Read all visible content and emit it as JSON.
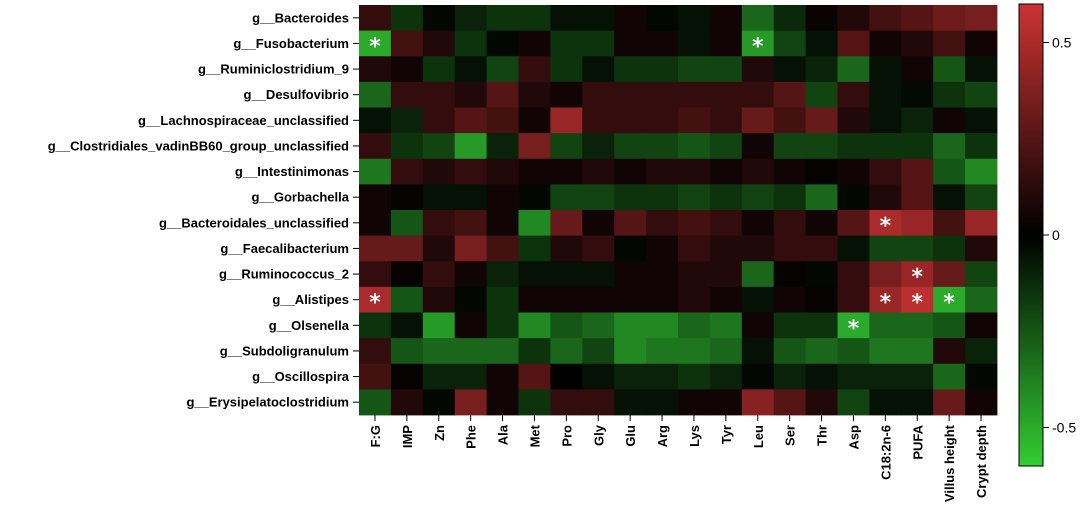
{
  "chart_data": {
    "type": "heatmap",
    "title": "",
    "rows": [
      "g__Bacteroides",
      "g__Fusobacterium",
      "g__Ruminiclostridium_9",
      "g__Desulfovibrio",
      "g__Lachnospiraceae_unclassified",
      "g__Clostridiales_vadinBB60_group_unclassified",
      "g__Intestinimonas",
      "g__Gorbachella",
      "g__Bacteroidales_unclassified",
      "g__Faecalibacterium",
      "g__Ruminococcus_2",
      "g__Alistipes",
      "g__Olsenella",
      "g__Subdoligranulum",
      "g__Oscillospira",
      "g__Erysipelatoclostridium"
    ],
    "columns": [
      "F:G",
      "IMP",
      "Zn",
      "Phe",
      "Ala",
      "Met",
      "Pro",
      "Gly",
      "Glu",
      "Arg",
      "Lys",
      "Tyr",
      "Leu",
      "Ser",
      "Thr",
      "Asp",
      "C18:2n-6",
      "PUFA",
      "Villus height",
      "Crypt depth"
    ],
    "values": [
      [
        0.15,
        -0.15,
        -0.02,
        -0.1,
        -0.15,
        -0.15,
        -0.05,
        -0.05,
        0.05,
        -0.02,
        -0.05,
        0.05,
        -0.3,
        -0.12,
        0.03,
        0.1,
        0.2,
        0.25,
        0.32,
        0.35
      ],
      [
        -0.5,
        0.2,
        0.1,
        -0.15,
        -0.02,
        0.05,
        -0.15,
        -0.15,
        0.05,
        0.05,
        -0.05,
        0.05,
        -0.45,
        -0.2,
        -0.05,
        0.25,
        0.05,
        0.1,
        0.2,
        0.05
      ],
      [
        0.1,
        0.05,
        -0.15,
        -0.05,
        -0.2,
        0.15,
        -0.15,
        -0.05,
        -0.15,
        -0.15,
        -0.2,
        -0.2,
        0.1,
        -0.05,
        -0.1,
        -0.3,
        -0.05,
        0.05,
        -0.25,
        -0.05
      ],
      [
        -0.3,
        0.15,
        0.15,
        0.1,
        0.25,
        0.1,
        0.05,
        0.15,
        0.15,
        0.15,
        0.15,
        0.15,
        0.15,
        0.25,
        -0.2,
        0.15,
        -0.05,
        -0.03,
        -0.15,
        -0.2
      ],
      [
        -0.05,
        -0.1,
        0.15,
        0.25,
        0.2,
        0.05,
        0.45,
        0.15,
        0.15,
        0.15,
        0.2,
        0.15,
        0.3,
        0.2,
        0.3,
        0.1,
        -0.05,
        -0.1,
        0.05,
        -0.05
      ],
      [
        0.15,
        -0.15,
        -0.2,
        -0.45,
        -0.1,
        0.35,
        -0.2,
        -0.1,
        -0.2,
        -0.2,
        -0.25,
        -0.2,
        0.05,
        -0.2,
        -0.2,
        -0.15,
        -0.15,
        -0.15,
        -0.3,
        -0.15
      ],
      [
        -0.35,
        0.15,
        0.1,
        0.15,
        0.1,
        0.05,
        0.05,
        0.1,
        0.05,
        0.1,
        0.1,
        0.05,
        0.1,
        0.05,
        0.02,
        0.05,
        0.15,
        0.25,
        -0.25,
        -0.4
      ],
      [
        0.05,
        0.02,
        -0.05,
        -0.05,
        0.05,
        -0.02,
        -0.2,
        -0.2,
        -0.15,
        -0.15,
        -0.2,
        -0.15,
        -0.2,
        -0.15,
        -0.3,
        -0.02,
        0.1,
        0.25,
        -0.05,
        -0.2
      ],
      [
        0.05,
        -0.25,
        0.15,
        0.2,
        0.05,
        -0.4,
        0.3,
        0.05,
        0.25,
        0.15,
        0.2,
        0.15,
        0.05,
        0.15,
        0.05,
        0.25,
        0.5,
        0.45,
        0.2,
        0.45
      ],
      [
        0.3,
        0.3,
        0.1,
        0.35,
        0.2,
        -0.15,
        0.1,
        0.15,
        -0.02,
        0.05,
        0.15,
        0.1,
        0.1,
        0.15,
        0.15,
        -0.05,
        -0.2,
        -0.2,
        -0.15,
        0.1
      ],
      [
        0.15,
        0.02,
        0.15,
        0.05,
        -0.1,
        -0.05,
        -0.05,
        -0.05,
        0.05,
        0.05,
        0.1,
        0.1,
        -0.3,
        0.02,
        -0.02,
        0.15,
        0.35,
        0.45,
        0.3,
        -0.2
      ],
      [
        0.5,
        -0.25,
        0.1,
        -0.02,
        -0.15,
        0.05,
        0.05,
        0.05,
        0.05,
        0.05,
        0.1,
        0.05,
        -0.05,
        0.05,
        0.02,
        0.15,
        0.45,
        0.55,
        -0.5,
        -0.3
      ],
      [
        -0.15,
        -0.05,
        -0.45,
        0.05,
        -0.15,
        -0.4,
        -0.25,
        -0.3,
        -0.4,
        -0.4,
        -0.3,
        -0.35,
        0.05,
        -0.15,
        -0.15,
        -0.5,
        -0.3,
        -0.3,
        -0.25,
        0.05
      ],
      [
        0.15,
        -0.25,
        -0.3,
        -0.3,
        -0.3,
        -0.15,
        -0.3,
        -0.2,
        -0.4,
        -0.35,
        -0.35,
        -0.3,
        -0.05,
        -0.25,
        -0.3,
        -0.25,
        -0.35,
        -0.35,
        0.1,
        -0.1
      ],
      [
        0.2,
        0.02,
        -0.1,
        -0.1,
        0.05,
        0.25,
        0.0,
        -0.05,
        -0.1,
        -0.1,
        -0.15,
        -0.1,
        -0.02,
        -0.1,
        -0.05,
        -0.1,
        -0.1,
        -0.1,
        -0.3,
        -0.02
      ],
      [
        -0.25,
        0.1,
        -0.02,
        0.35,
        0.05,
        -0.15,
        0.15,
        0.15,
        -0.05,
        -0.05,
        0.05,
        0.05,
        0.4,
        0.25,
        0.1,
        -0.2,
        -0.05,
        -0.05,
        0.3,
        0.05
      ]
    ],
    "significant": [
      {
        "row": 1,
        "col": 0,
        "mark": "*"
      },
      {
        "row": 1,
        "col": 12,
        "mark": "*"
      },
      {
        "row": 8,
        "col": 16,
        "mark": "*"
      },
      {
        "row": 10,
        "col": 17,
        "mark": "*"
      },
      {
        "row": 11,
        "col": 0,
        "mark": "*"
      },
      {
        "row": 11,
        "col": 16,
        "mark": "*"
      },
      {
        "row": 11,
        "col": 17,
        "mark": "*"
      },
      {
        "row": 11,
        "col": 18,
        "mark": "*"
      },
      {
        "row": 12,
        "col": 15,
        "mark": "*"
      }
    ],
    "colorscale": {
      "min": -0.6,
      "max": 0.6,
      "low_color": "#33cc33",
      "mid_color": "#000000",
      "high_color": "#cc3333",
      "ticks": [
        {
          "value": 0.5,
          "label": "0.5"
        },
        {
          "value": 0,
          "label": "0"
        },
        {
          "value": -0.5,
          "label": "-0.5"
        }
      ]
    },
    "legend_placement": "right",
    "grid": false
  }
}
